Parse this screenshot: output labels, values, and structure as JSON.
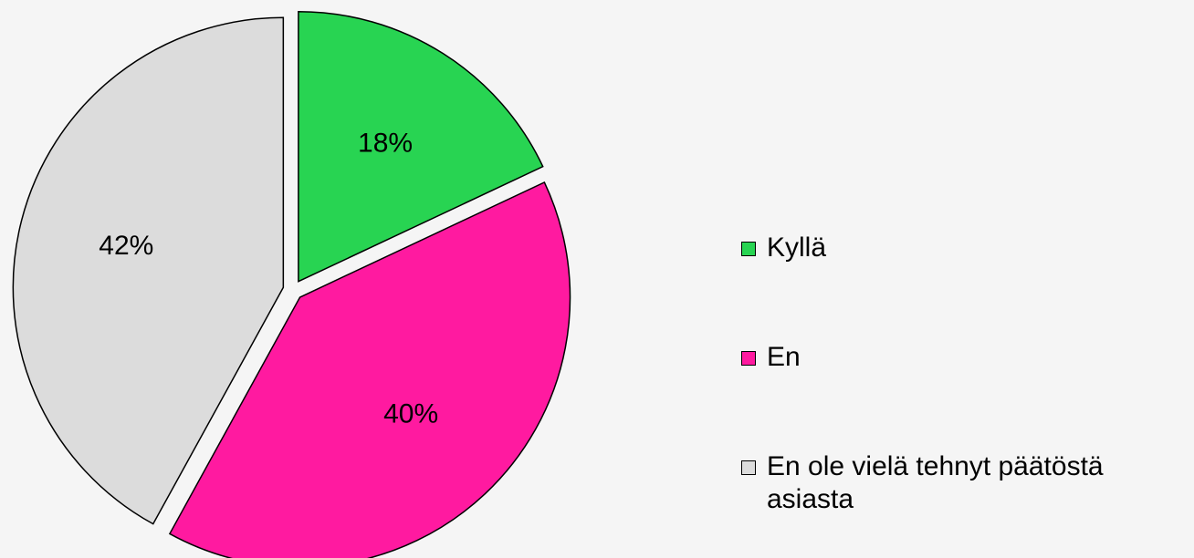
{
  "chart_data": {
    "type": "pie",
    "categories": [
      "Kyllä",
      "En",
      "En ole vielä tehnyt päätöstä asiasta"
    ],
    "values": [
      18,
      40,
      42
    ],
    "value_labels": [
      "18%",
      "40%",
      "42%"
    ],
    "colors": [
      "#28d452",
      "#ff1aa0",
      "#dcdcdc"
    ],
    "legend": "right"
  }
}
